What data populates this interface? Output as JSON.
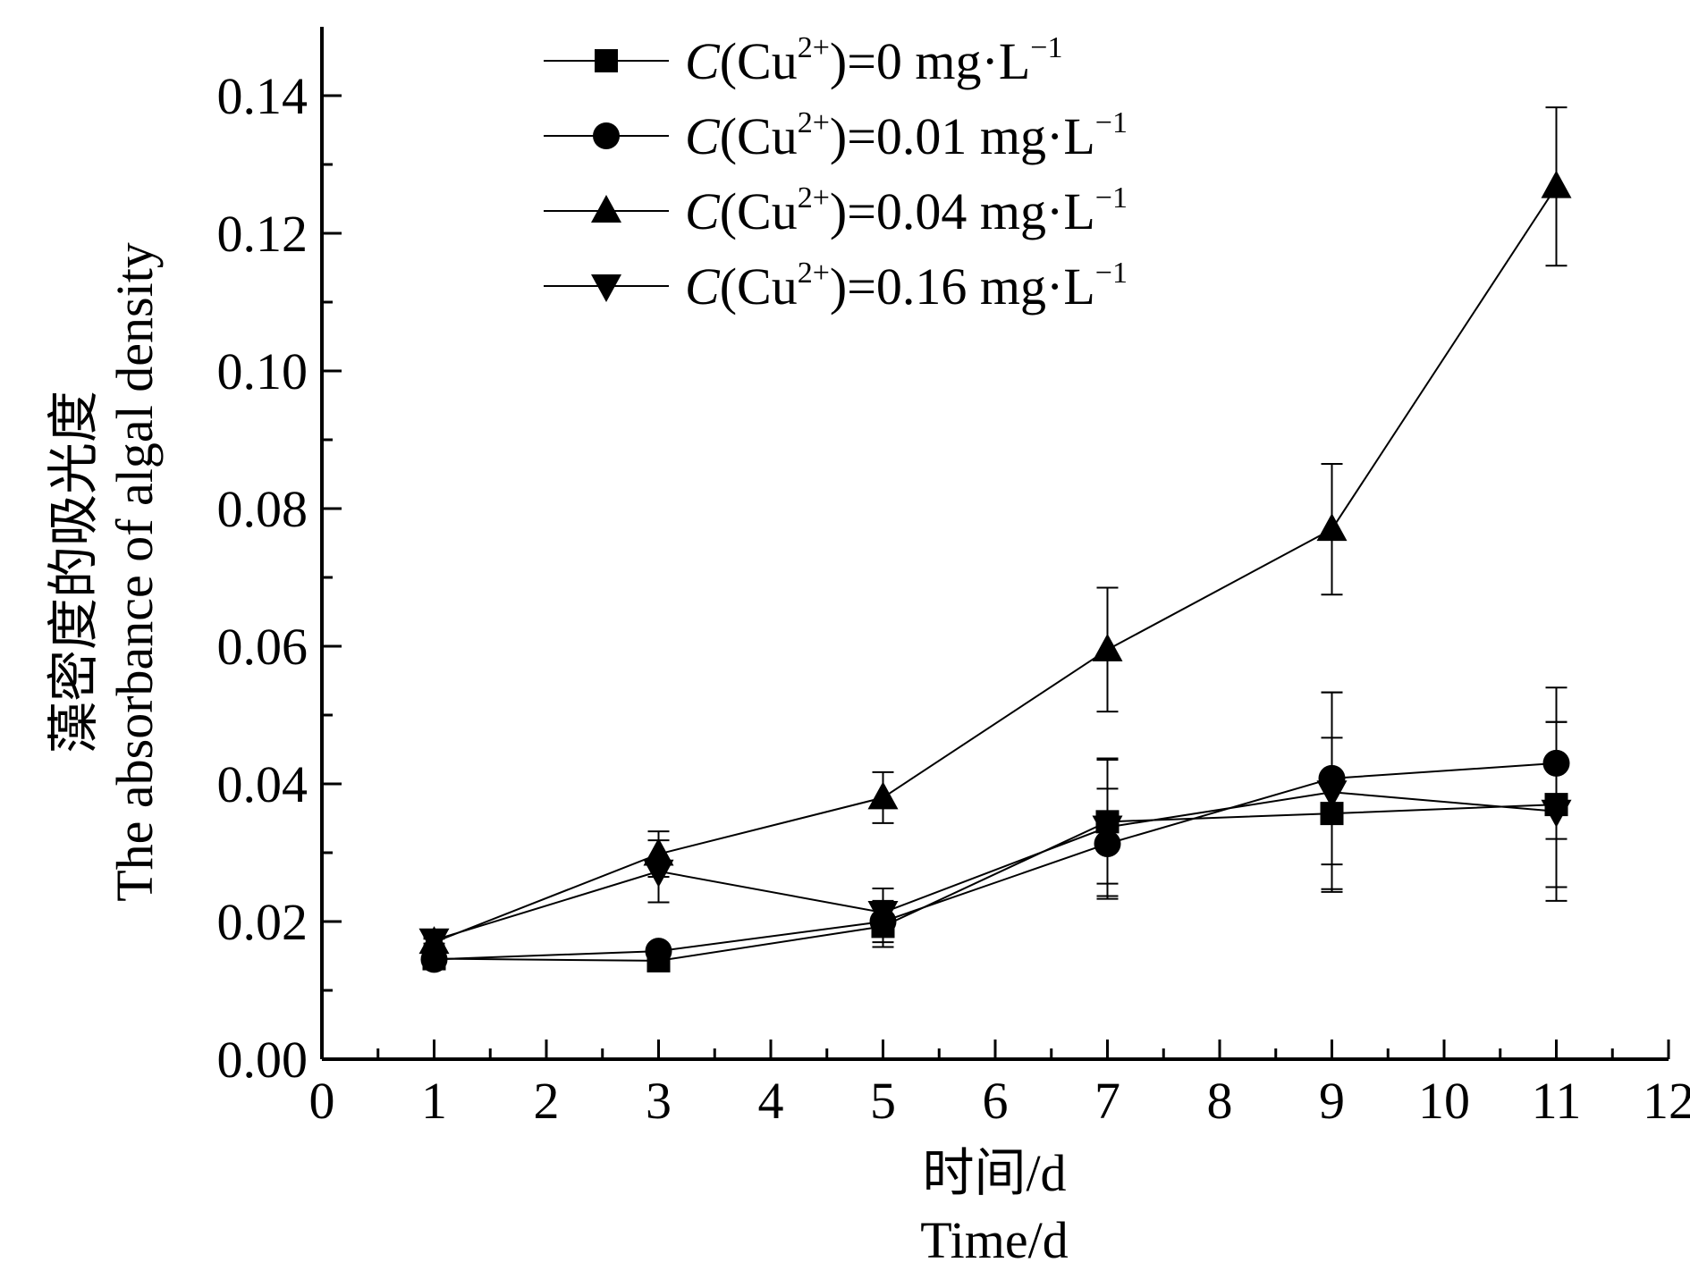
{
  "chart_data": {
    "type": "line",
    "xlabel": [
      "时间/d",
      "Time/d"
    ],
    "ylabel": [
      "藻密度的吸光度",
      "The absorbance of algal density"
    ],
    "xlim": [
      0,
      12
    ],
    "ylim": [
      0,
      0.15
    ],
    "x_ticks": [
      "0",
      "1",
      "2",
      "3",
      "4",
      "5",
      "6",
      "7",
      "8",
      "9",
      "10",
      "11",
      "12"
    ],
    "y_ticks": [
      "0.00",
      "0.02",
      "0.04",
      "0.06",
      "0.08",
      "0.10",
      "0.12",
      "0.14"
    ],
    "legend_position": "top-center",
    "grid": false,
    "x": [
      1,
      3,
      5,
      7,
      9,
      11
    ],
    "series": [
      {
        "name": "C(Cu2+)=0 mg·L−1",
        "legend": {
          "italic": "C",
          "pre": "(Cu",
          "sup1": "2+",
          "mid": ")=0 mg·L",
          "sup2": "−1"
        },
        "marker": "square",
        "values": [
          0.0146,
          0.0143,
          0.0193,
          0.0345,
          0.0357,
          0.037
        ],
        "errors": [
          0.0005,
          0.0005,
          0.003,
          0.009,
          0.011,
          0.012
        ]
      },
      {
        "name": "C(Cu2+)=0.01 mg·L−1",
        "legend": {
          "italic": "C",
          "pre": "(Cu",
          "sup1": "2+",
          "mid": ")=0.01 mg·L",
          "sup2": "−1"
        },
        "marker": "circle",
        "values": [
          0.0145,
          0.0157,
          0.02,
          0.0313,
          0.0408,
          0.043
        ],
        "errors": [
          0.0005,
          0.001,
          0.003,
          0.008,
          0.0125,
          0.011
        ]
      },
      {
        "name": "C(Cu2+)=0.04 mg·L−1",
        "legend": {
          "italic": "C",
          "pre": "(Cu",
          "sup1": "2+",
          "mid": ")=0.04 mg·L",
          "sup2": "−1"
        },
        "marker": "triangle-up",
        "values": [
          0.017,
          0.0298,
          0.038,
          0.0595,
          0.077,
          0.1268
        ],
        "errors": [
          0.0005,
          0.0033,
          0.0037,
          0.009,
          0.0095,
          0.0115
        ]
      },
      {
        "name": "C(Cu2+)=0.16 mg·L−1",
        "legend": {
          "italic": "C",
          "pre": "(Cu",
          "sup1": "2+",
          "mid": ")=0.16 mg·L",
          "sup2": "−1"
        },
        "marker": "triangle-down",
        "values": [
          0.0173,
          0.0273,
          0.0213,
          0.0337,
          0.0388,
          0.036
        ],
        "errors": [
          0.0005,
          0.0045,
          0.0035,
          0.01,
          0.0145,
          0.013
        ]
      }
    ]
  }
}
